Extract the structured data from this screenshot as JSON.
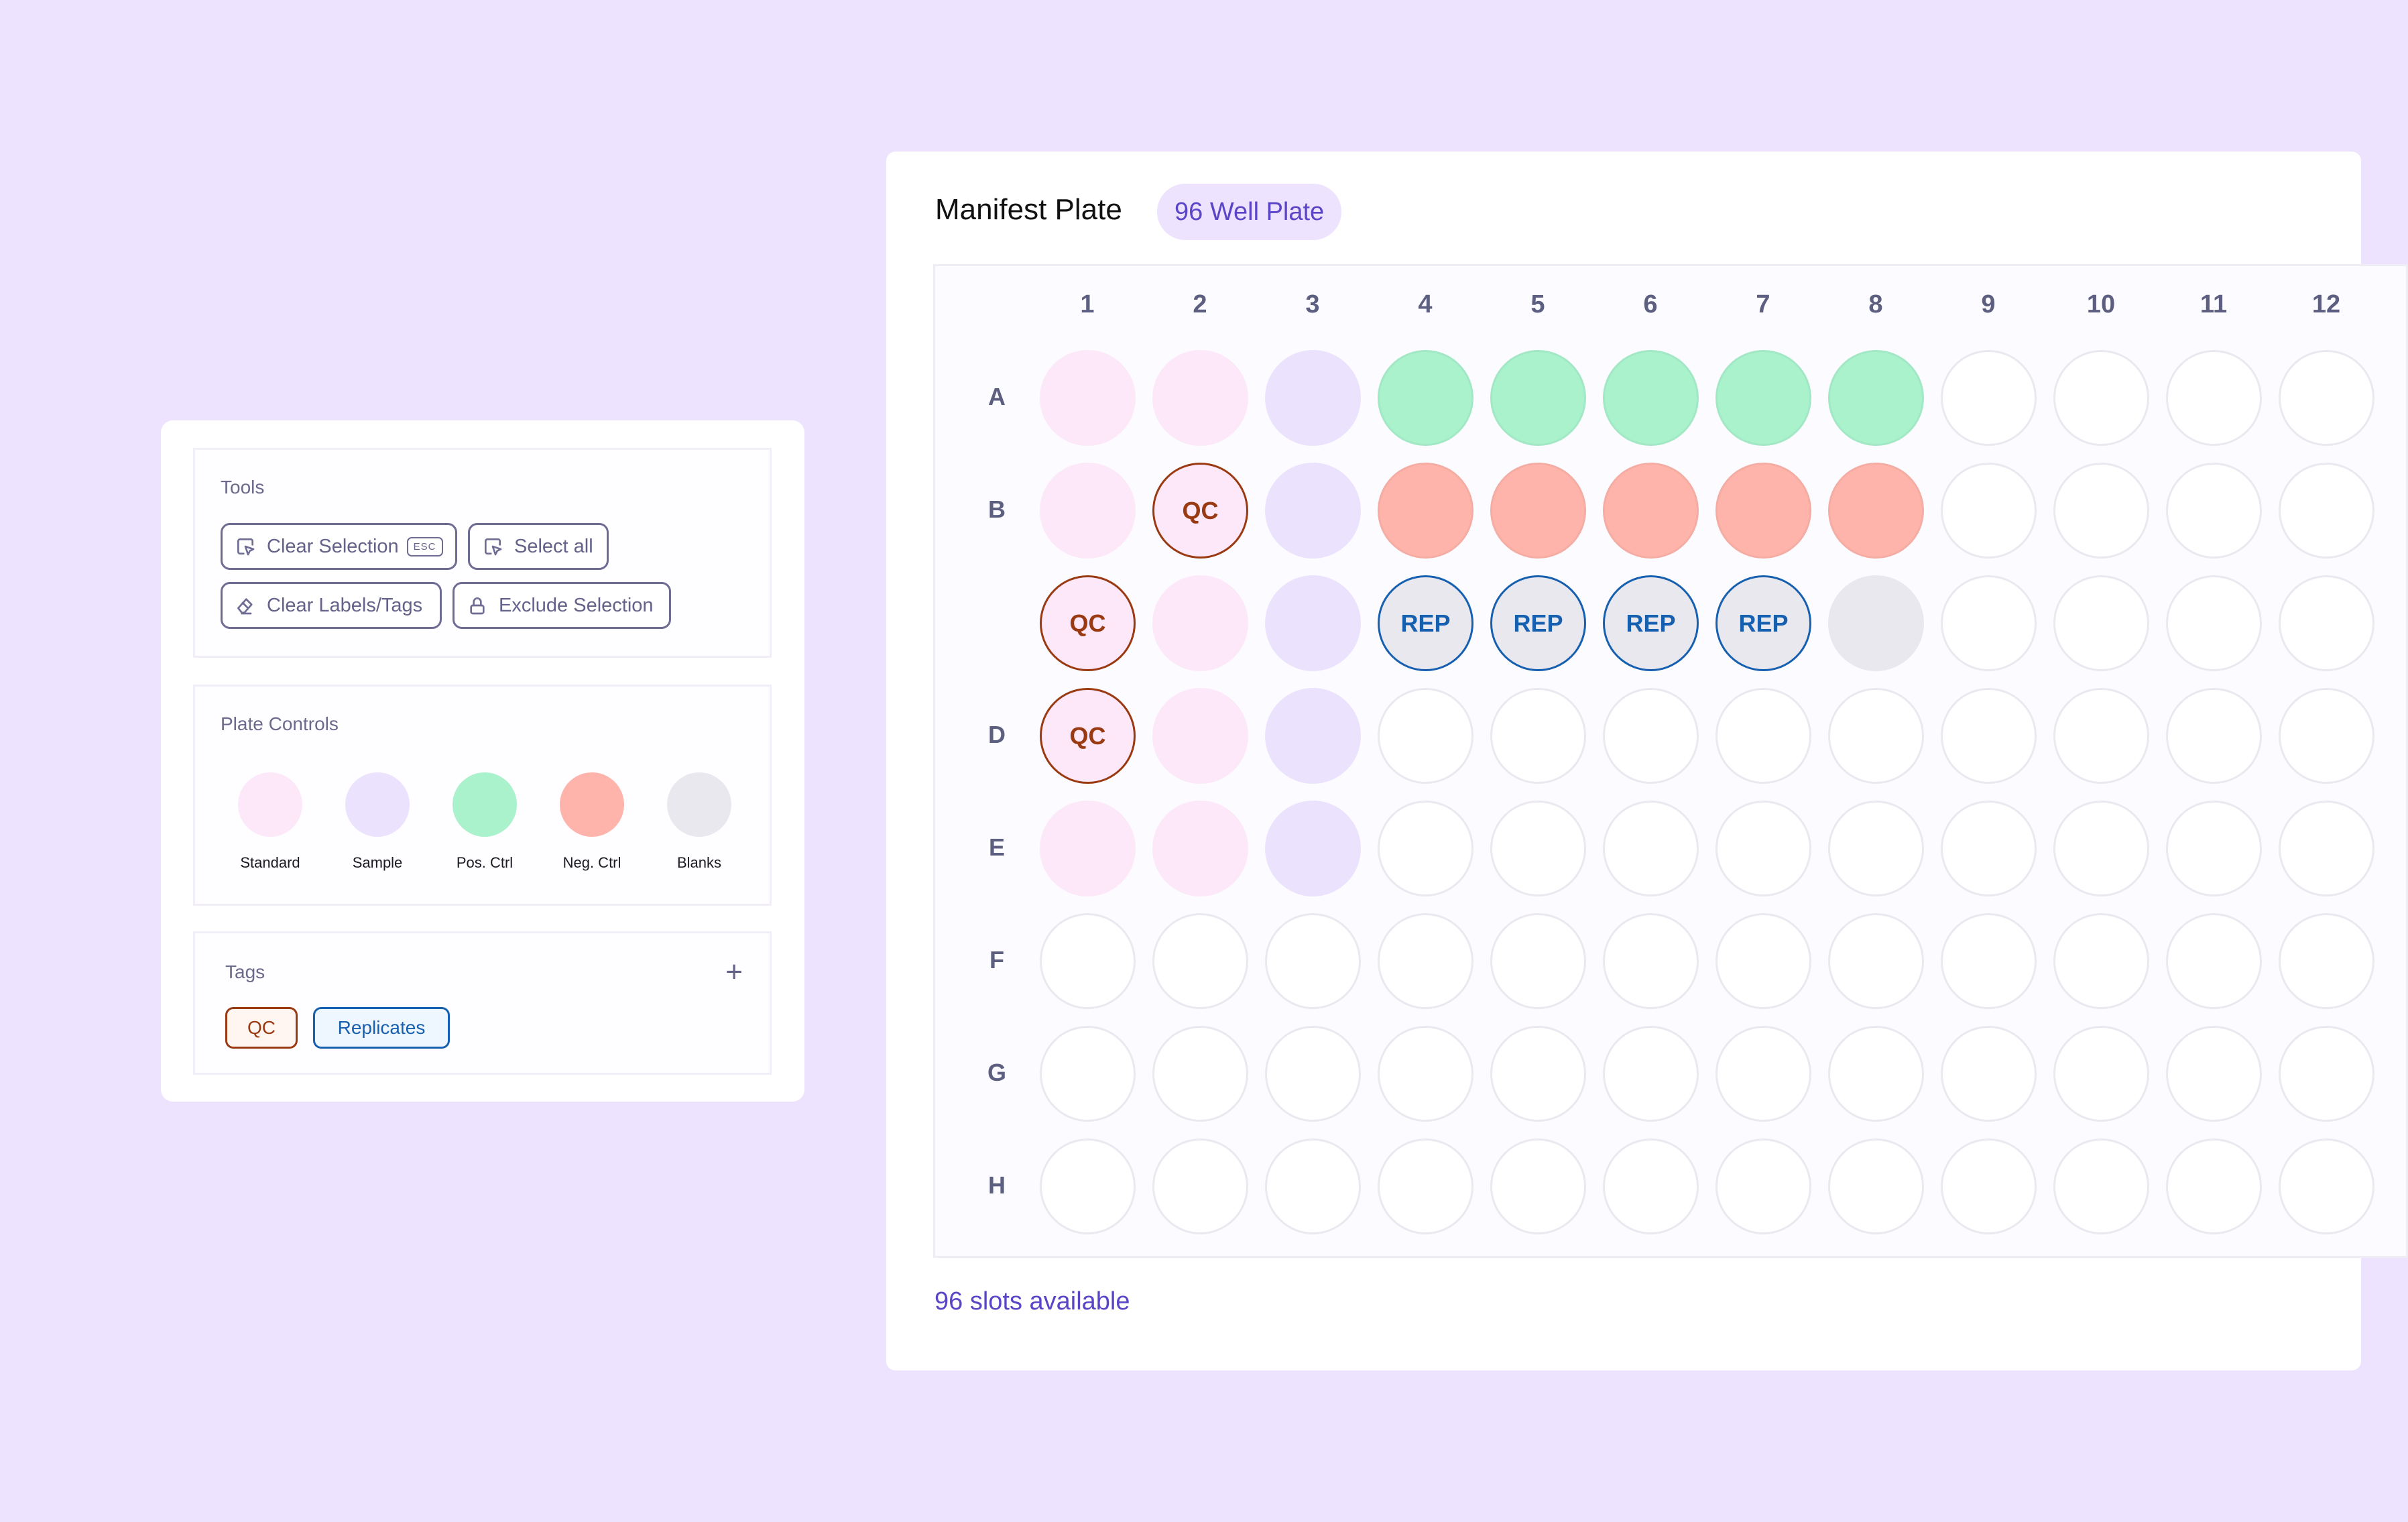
{
  "tools": {
    "title": "Tools",
    "buttons": [
      {
        "label": "Clear Selection",
        "shortcut": "ESC",
        "icon": "pointer-select-icon"
      },
      {
        "label": "Select all",
        "icon": "pointer-select-icon"
      },
      {
        "label": "Clear Labels/Tags",
        "icon": "eraser-icon"
      },
      {
        "label": "Exclude Selection",
        "icon": "lock-icon"
      }
    ]
  },
  "plate_controls": {
    "title": "Plate Controls",
    "items": [
      {
        "label": "Standard",
        "color": "#fde8f9"
      },
      {
        "label": "Sample",
        "color": "#ebe2fd"
      },
      {
        "label": "Pos. Ctrl",
        "color": "#a9f2cc"
      },
      {
        "label": "Neg. Ctrl",
        "color": "#feb4aa"
      },
      {
        "label": "Blanks",
        "color": "#eae8ef"
      }
    ]
  },
  "tags": {
    "title": "Tags",
    "add_icon": "plus-icon",
    "items": [
      {
        "label": "QC",
        "color": "#9a3a12",
        "bg": "#fff6f2"
      },
      {
        "label": "Replicates",
        "color": "#1760b0",
        "bg": "#eef6ff"
      }
    ]
  },
  "plate": {
    "title": "Manifest Plate",
    "badge": "96 Well Plate",
    "columns": [
      "1",
      "2",
      "3",
      "4",
      "5",
      "6",
      "7",
      "8",
      "9",
      "10",
      "11",
      "12"
    ],
    "rows": [
      "A",
      "B",
      "",
      "D",
      "E",
      "F",
      "G",
      "H"
    ],
    "wells": {
      "A": [
        "Standard",
        "Standard",
        "Sample",
        "Pos. Ctrl",
        "Pos. Ctrl",
        "Pos. Ctrl",
        "Pos. Ctrl",
        "Pos. Ctrl",
        "",
        "",
        "",
        ""
      ],
      "B": [
        "Standard",
        "Standard:QC",
        "Sample",
        "Neg. Ctrl",
        "Neg. Ctrl",
        "Neg. Ctrl",
        "Neg. Ctrl",
        "Neg. Ctrl",
        "",
        "",
        "",
        ""
      ],
      "C": [
        "Standard:QC",
        "Standard",
        "Sample",
        "Blanks:REP",
        "Blanks:REP",
        "Blanks:REP",
        "Blanks:REP",
        "Blanks",
        "",
        "",
        "",
        ""
      ],
      "D": [
        "Standard:QC",
        "Standard",
        "Sample",
        "",
        "",
        "",
        "",
        "",
        "",
        "",
        "",
        ""
      ],
      "E": [
        "Standard",
        "Standard",
        "Sample",
        "",
        "",
        "",
        "",
        "",
        "",
        "",
        "",
        ""
      ],
      "F": [
        "",
        "",
        "",
        "",
        "",
        "",
        "",
        "",
        "",
        "",
        "",
        ""
      ],
      "G": [
        "",
        "",
        "",
        "",
        "",
        "",
        "",
        "",
        "",
        "",
        "",
        ""
      ],
      "H": [
        "",
        "",
        "",
        "",
        "",
        "",
        "",
        "",
        "",
        "",
        "",
        ""
      ]
    },
    "tag_labels": {
      "QC": "QC",
      "REP": "REP"
    },
    "footer": "96 slots available"
  },
  "colors": {
    "background": "#ede3ff",
    "accent": "#5b45c7",
    "qc": "#9a3a12",
    "rep": "#1760b0"
  }
}
